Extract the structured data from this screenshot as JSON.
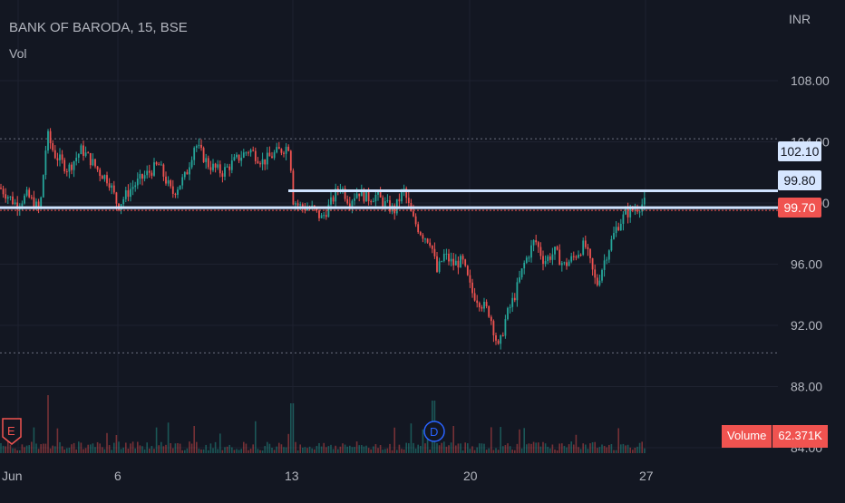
{
  "header": {
    "symbol_title": "BANK OF BARODA, 15, BSE",
    "indicator": "Vol",
    "currency": "INR"
  },
  "price_labels": [
    {
      "value": "102.10",
      "style": "light"
    },
    {
      "value": "99.80",
      "style": "light"
    },
    {
      "value": "99.70",
      "style": "red"
    }
  ],
  "volume_badge": {
    "label": "Volume",
    "value": "62.371K"
  },
  "markers": {
    "earnings": "E",
    "dividend": "D"
  },
  "colors": {
    "up": "#26a69a",
    "down": "#ef5350",
    "line": "#cfe3ff",
    "background": "#131722"
  },
  "chart_data": {
    "type": "candlestick",
    "x_tick_labels": [
      "Jun",
      "6",
      "13",
      "20",
      "27"
    ],
    "y_tick_labels": [
      "108.00",
      "104.00",
      "100.00",
      "96.00",
      "92.00",
      "88.00",
      "84.00"
    ],
    "ylim": [
      84.0,
      110.4
    ],
    "horizontal_lines": [
      100.8,
      99.7
    ],
    "dotted_lines": [
      104.2,
      90.2
    ],
    "path_points": [
      [
        0,
        101.0
      ],
      [
        18,
        99.9
      ],
      [
        30,
        100.5
      ],
      [
        44,
        99.5
      ],
      [
        52,
        104.5
      ],
      [
        60,
        103.2
      ],
      [
        75,
        102.2
      ],
      [
        90,
        103.5
      ],
      [
        100,
        102.8
      ],
      [
        110,
        102.0
      ],
      [
        120,
        101.5
      ],
      [
        130,
        99.8
      ],
      [
        145,
        101.0
      ],
      [
        160,
        101.8
      ],
      [
        175,
        102.5
      ],
      [
        190,
        100.6
      ],
      [
        205,
        101.8
      ],
      [
        215,
        103.9
      ],
      [
        230,
        102.5
      ],
      [
        245,
        102.0
      ],
      [
        260,
        102.8
      ],
      [
        275,
        103.5
      ],
      [
        290,
        102.7
      ],
      [
        305,
        103.3
      ],
      [
        320,
        103.8
      ],
      [
        322,
        100.3
      ],
      [
        330,
        99.8
      ],
      [
        345,
        99.6
      ],
      [
        355,
        99.0
      ],
      [
        365,
        100.0
      ],
      [
        375,
        101.2
      ],
      [
        385,
        100.1
      ],
      [
        395,
        100.8
      ],
      [
        405,
        100.3
      ],
      [
        415,
        100.5
      ],
      [
        425,
        99.9
      ],
      [
        435,
        99.5
      ],
      [
        445,
        100.9
      ],
      [
        455,
        99.0
      ],
      [
        465,
        98.0
      ],
      [
        475,
        97.5
      ],
      [
        482,
        95.5
      ],
      [
        490,
        96.6
      ],
      [
        500,
        96.0
      ],
      [
        510,
        96.2
      ],
      [
        520,
        94.2
      ],
      [
        530,
        93.5
      ],
      [
        540,
        92.8
      ],
      [
        550,
        90.4
      ],
      [
        558,
        92.5
      ],
      [
        568,
        94.0
      ],
      [
        578,
        96.0
      ],
      [
        590,
        97.6
      ],
      [
        600,
        96.2
      ],
      [
        612,
        96.8
      ],
      [
        622,
        95.9
      ],
      [
        632,
        96.4
      ],
      [
        645,
        97.3
      ],
      [
        658,
        94.6
      ],
      [
        668,
        96.5
      ],
      [
        680,
        98.4
      ],
      [
        690,
        99.3
      ],
      [
        700,
        99.6
      ],
      [
        710,
        100.0
      ]
    ],
    "volume": {
      "name": "Vol",
      "last_value": "62.371K",
      "spikes": [
        [
          52,
          64
        ],
        [
          128,
          20
        ],
        [
          322,
          55
        ],
        [
          478,
          58
        ],
        [
          500,
          30
        ],
        [
          215,
          30
        ]
      ]
    }
  }
}
